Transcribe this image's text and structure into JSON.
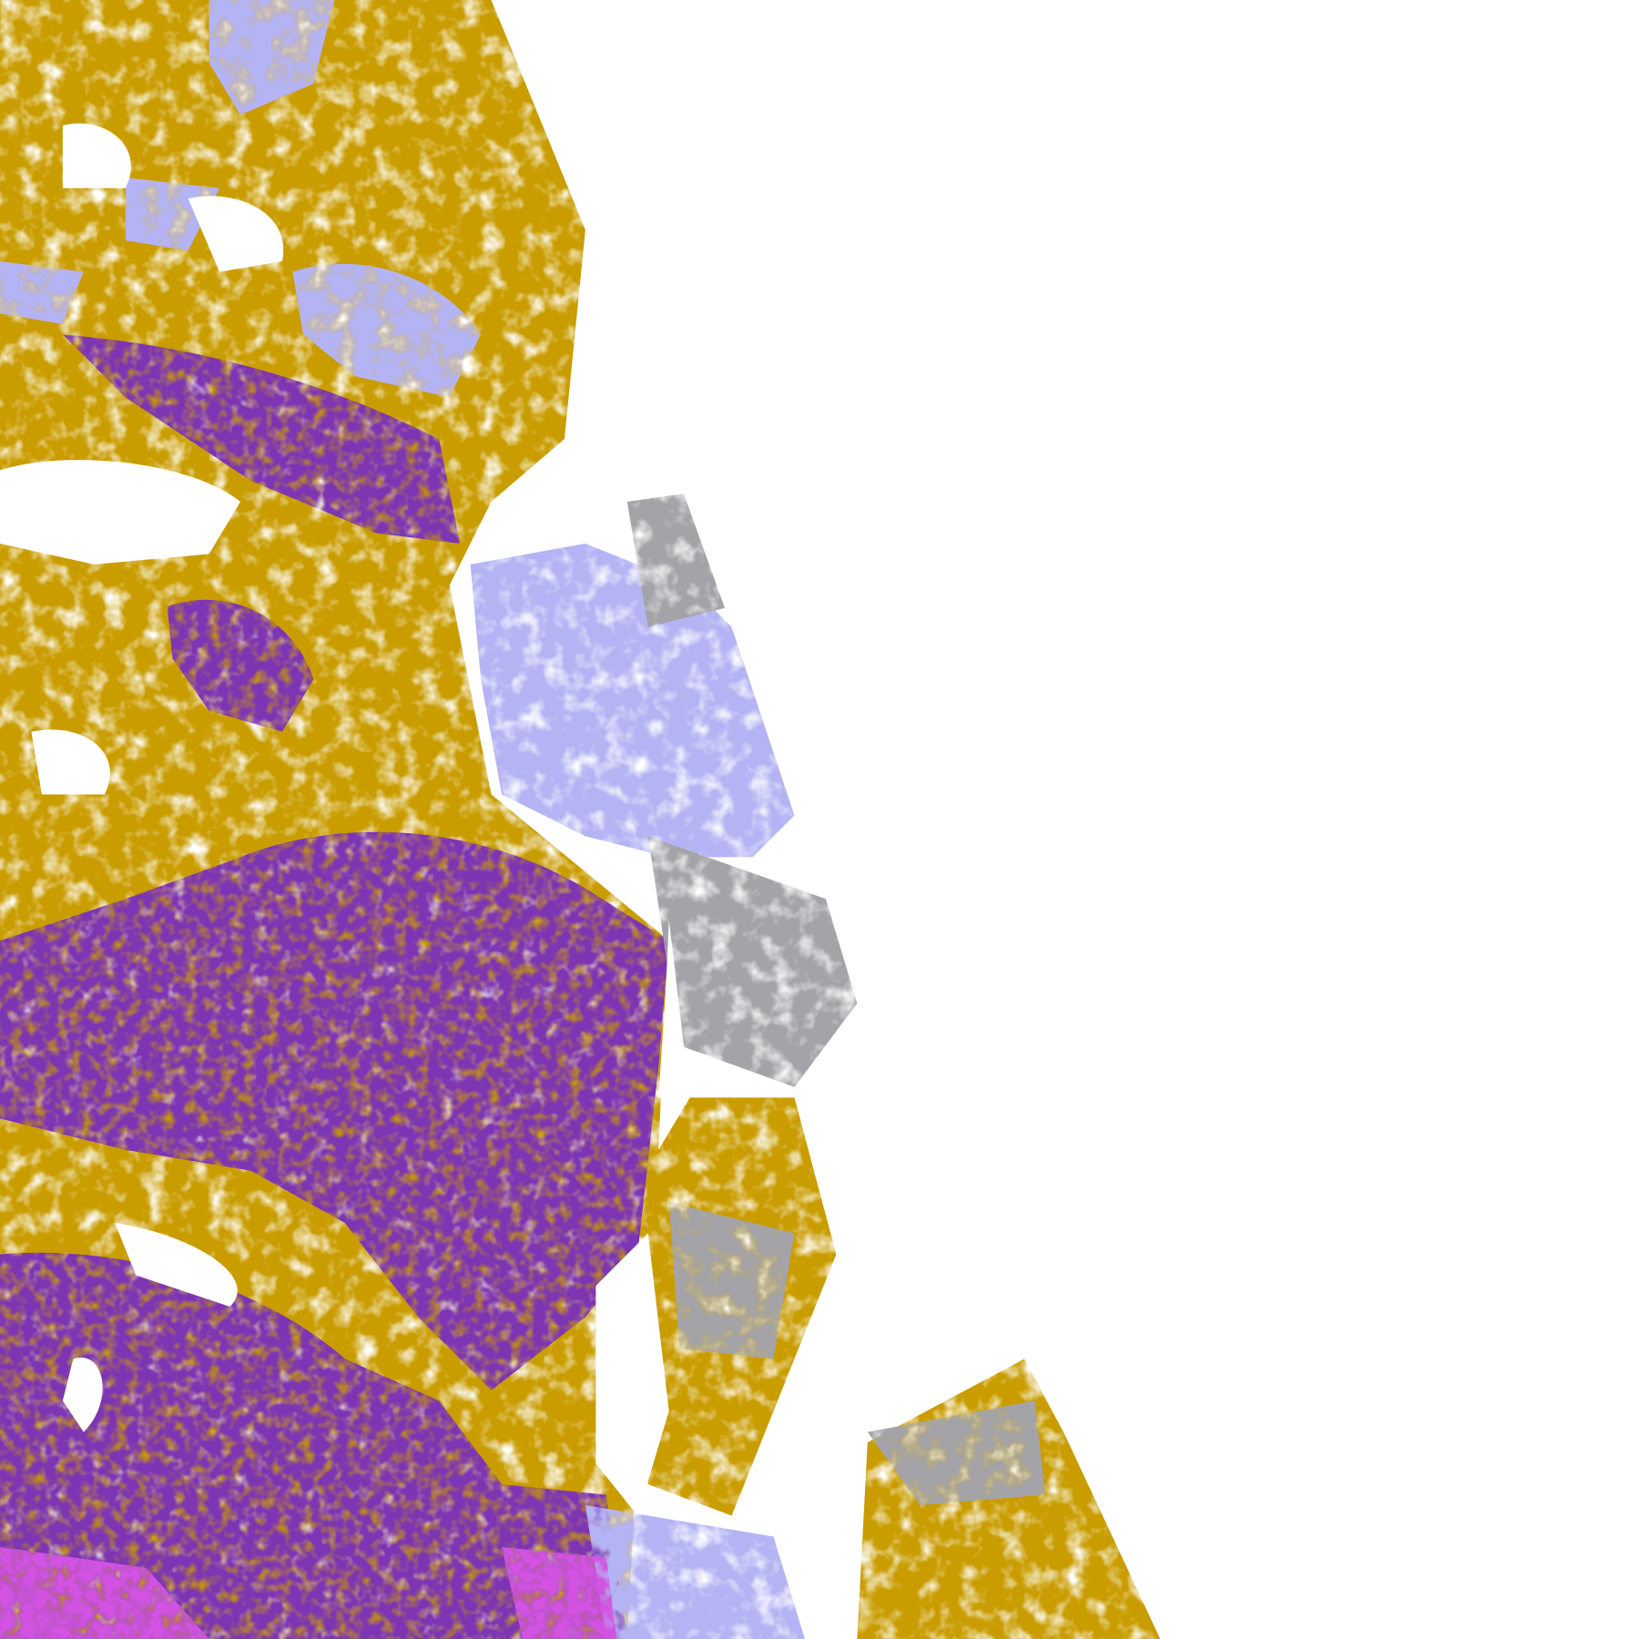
{
  "map": {
    "kind": "satellite cloud-classification swath",
    "colors": {
      "background": "#ffffff",
      "class_gold": "#c99c00",
      "class_purple": "#7d35b4",
      "class_lavender": "#b4b4f4",
      "class_gray": "#a4a4a8",
      "class_magenta": "#d253e2"
    }
  }
}
